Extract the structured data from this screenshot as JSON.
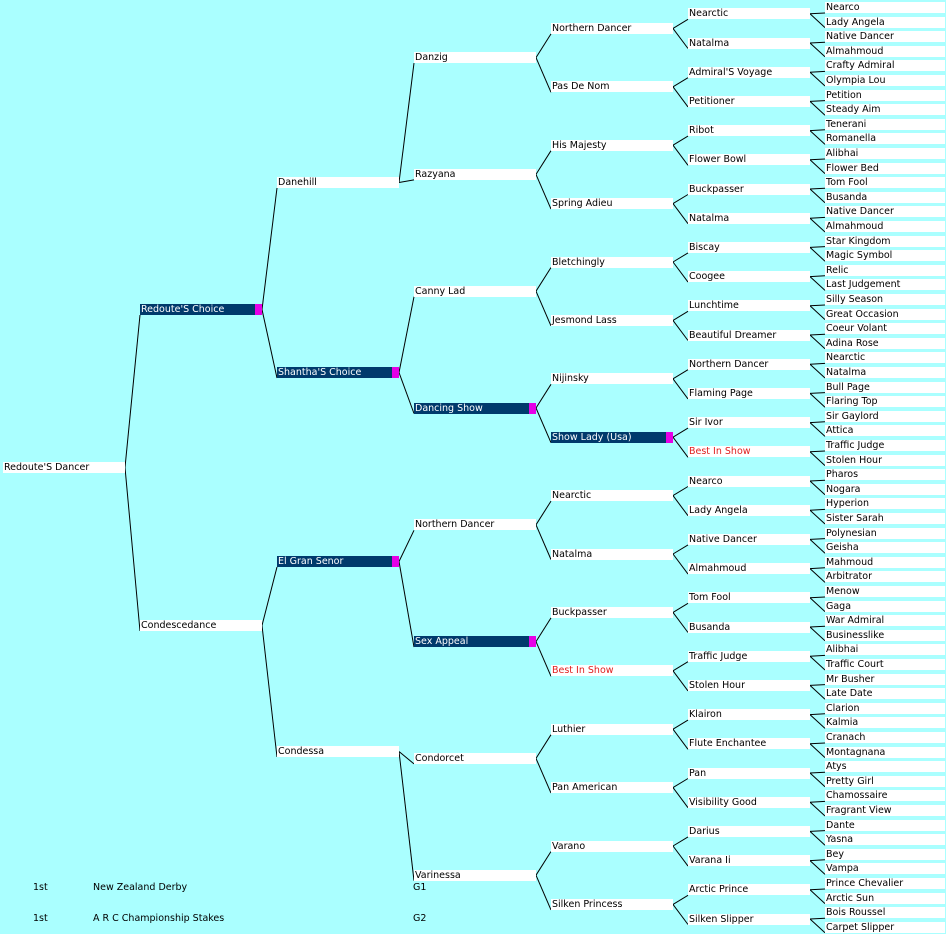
{
  "pedigree": [
    "Redoute'S Dancer",
    "Redoute'S Choice",
    "Condescedance",
    "Danehill",
    "Shantha'S Choice",
    "El Gran Senor",
    "Condessa",
    "Danzig",
    "Razyana",
    "Canny Lad",
    "Dancing Show",
    "Northern Dancer",
    "Sex Appeal",
    "Condorcet",
    "Varinessa",
    "Northern Dancer",
    "Pas De Nom",
    "His Majesty",
    "Spring Adieu",
    "Bletchingly",
    "Jesmond Lass",
    "Nijinsky",
    "Show Lady (Usa)",
    "Nearctic",
    "Natalma",
    "Buckpasser",
    "Best In Show",
    "Luthier",
    "Pan American",
    "Varano",
    "Silken Princess",
    "Nearctic",
    "Natalma",
    "Admiral'S Voyage",
    "Petitioner",
    "Ribot",
    "Flower Bowl",
    "Buckpasser",
    "Natalma",
    "Biscay",
    "Coogee",
    "Lunchtime",
    "Beautiful Dreamer",
    "Northern Dancer",
    "Flaming Page",
    "Sir Ivor",
    "Best In Show",
    "Nearco",
    "Lady Angela",
    "Native Dancer",
    "Almahmoud",
    "Tom Fool",
    "Busanda",
    "Traffic Judge",
    "Stolen Hour",
    "Klairon",
    "Flute Enchantee",
    "Pan",
    "Visibility Good",
    "Darius",
    "Varana Ii",
    "Arctic Prince",
    "Silken Slipper",
    "Nearco",
    "Lady Angela",
    "Native Dancer",
    "Almahmoud",
    "Crafty Admiral",
    "Olympia Lou",
    "Petition",
    "Steady Aim",
    "Tenerani",
    "Romanella",
    "Alibhai",
    "Flower Bed",
    "Tom Fool",
    "Busanda",
    "Native Dancer",
    "Almahmoud",
    "Star Kingdom",
    "Magic Symbol",
    "Relic",
    "Last Judgement",
    "Silly Season",
    "Great Occasion",
    "Coeur Volant",
    "Adina Rose",
    "Nearctic",
    "Natalma",
    "Bull Page",
    "Flaring Top",
    "Sir Gaylord",
    "Attica",
    "Traffic Judge",
    "Stolen Hour",
    "Pharos",
    "Nogara",
    "Hyperion",
    "Sister Sarah",
    "Polynesian",
    "Geisha",
    "Mahmoud",
    "Arbitrator",
    "Menow",
    "Gaga",
    "War Admiral",
    "Businesslike",
    "Alibhai",
    "Traffic Court",
    "Mr Busher",
    "Late Date",
    "Clarion",
    "Kalmia",
    "Cranach",
    "Montagnana",
    "Atys",
    "Pretty Girl",
    "Chamossaire",
    "Fragrant View",
    "Dante",
    "Yasna",
    "Bey",
    "Vampa",
    "Prince Chevalier",
    "Arctic Sun",
    "Bois Roussel",
    "Carpet Slipper"
  ],
  "highlighted": [
    1,
    4,
    5,
    10,
    12,
    22
  ],
  "red": [
    26,
    46
  ],
  "races": [
    {
      "place": "1st",
      "name": "New Zealand Derby",
      "grade": "G1"
    },
    {
      "place": "1st",
      "name": "A R C Championship Stakes",
      "grade": "G2"
    }
  ]
}
